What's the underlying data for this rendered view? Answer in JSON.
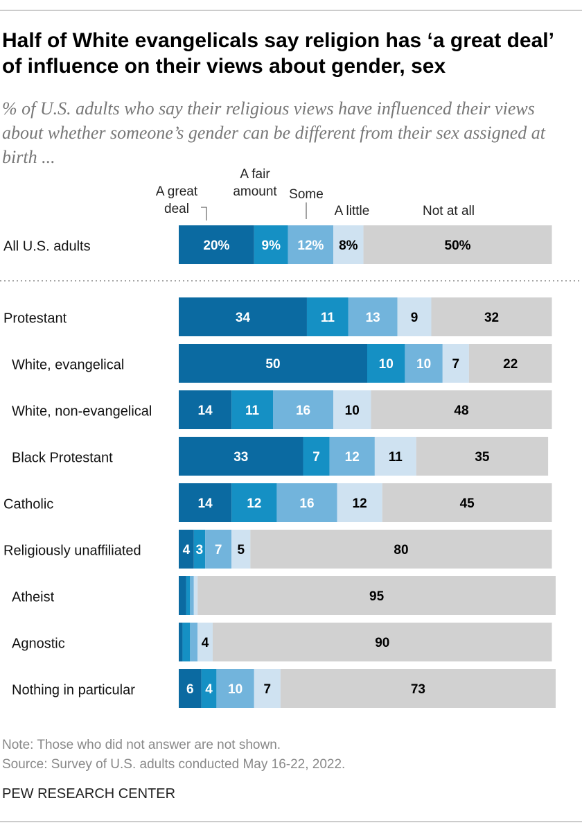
{
  "chart_data": [
    {
      "type": "stacked-bar",
      "title": "Half of White evangelicals say religion has ‘a great deal’ of influence on their views about gender, sex",
      "subtitle": "% of U.S. adults who say their religious views have influenced their views about whether someone’s gender can be different from their sex assigned at birth ...",
      "note": "Note: Those who did not answer are not shown.",
      "source": "Source: Survey of U.S. adults conducted May 16-22, 2022.",
      "credit": "PEW RESEARCH CENTER",
      "categories": [
        "All U.S. adults"
      ],
      "series": [
        {
          "name": "A great deal",
          "color": "#0b6aa1",
          "values": [
            20
          ],
          "value_labels": [
            "20%"
          ]
        },
        {
          "name": "A fair amount",
          "color": "#1590c4",
          "values": [
            9
          ],
          "value_labels": [
            "9%"
          ]
        },
        {
          "name": "Some",
          "color": "#72b4dc",
          "values": [
            12
          ],
          "value_labels": [
            "12%"
          ]
        },
        {
          "name": "A little",
          "color": "#cfe2f1",
          "values": [
            8
          ],
          "value_labels": [
            "8%"
          ]
        },
        {
          "name": "Not at all",
          "color": "#d1d1d1",
          "values": [
            50
          ],
          "value_labels": [
            "50%"
          ]
        }
      ]
    },
    {
      "type": "stacked-bar",
      "categories": [
        "Protestant",
        "White, evangelical",
        "White, non-evangelical",
        "Black Protestant",
        "Catholic",
        "Religiously unaffiliated",
        "Atheist",
        "Agnostic",
        "Nothing in particular"
      ],
      "series": [
        {
          "color": "#0b6aa1",
          "values": [
            34,
            50,
            14,
            33,
            14,
            4,
            2,
            1,
            6
          ]
        },
        {
          "color": "#1590c4",
          "values": [
            11,
            10,
            11,
            7,
            12,
            3,
            1,
            2,
            4
          ]
        },
        {
          "color": "#72b4dc",
          "values": [
            13,
            10,
            16,
            12,
            16,
            7,
            1,
            2,
            10
          ]
        },
        {
          "color": "#cfe2f1",
          "values": [
            9,
            7,
            10,
            11,
            12,
            5,
            1,
            4,
            7
          ]
        },
        {
          "color": "#d1d1d1",
          "values": [
            32,
            22,
            48,
            35,
            45,
            80,
            95,
            90,
            73
          ]
        }
      ]
    }
  ]
}
